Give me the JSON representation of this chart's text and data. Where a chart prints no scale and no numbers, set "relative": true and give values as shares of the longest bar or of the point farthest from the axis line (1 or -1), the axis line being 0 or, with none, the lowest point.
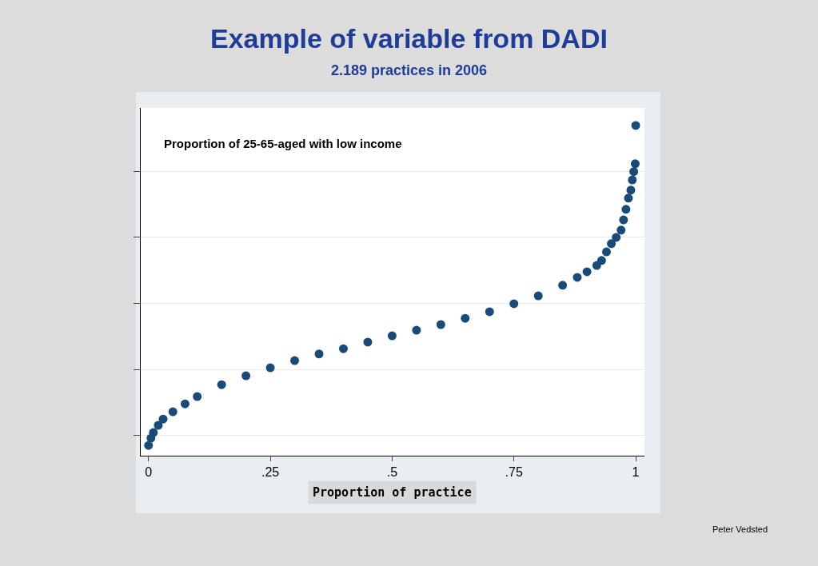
{
  "chart_data": {
    "type": "scatter",
    "title": "Example of variable from DADI",
    "subtitle": "2.189 practices in 2006",
    "xlabel": "Proportion of practice",
    "relative": true,
    "color": "#1a4a78",
    "marker": "circle",
    "grid": "y",
    "xlim": [
      -0.016,
      1.018
    ],
    "xticks": [
      0,
      {
        "value": 0.25,
        "label": ".25"
      },
      {
        "value": 0.5,
        "label": ".5"
      },
      {
        "value": 0.75,
        "label": ".75"
      },
      1
    ],
    "tick_labels": "x",
    "x": [
      0,
      0.005,
      0.01,
      0.02,
      0.03,
      0.05,
      0.075,
      0.1,
      0.15,
      0.2,
      0.25,
      0.3,
      0.35,
      0.4,
      0.45,
      0.5,
      0.55,
      0.6,
      0.65,
      0.7,
      0.75,
      0.8,
      0.85,
      0.88,
      0.9,
      0.92,
      0.93,
      0.94,
      0.95,
      0.96,
      0.97,
      0.975,
      0.98,
      0.985,
      0.99,
      0.993,
      0.996,
      0.999,
      1.0
    ],
    "values": [
      0.031,
      0.053,
      0.07,
      0.092,
      0.111,
      0.133,
      0.157,
      0.179,
      0.215,
      0.242,
      0.266,
      0.288,
      0.308,
      0.324,
      0.344,
      0.363,
      0.38,
      0.397,
      0.416,
      0.436,
      0.46,
      0.484,
      0.516,
      0.54,
      0.557,
      0.576,
      0.591,
      0.617,
      0.642,
      0.661,
      0.683,
      0.714,
      0.746,
      0.78,
      0.804,
      0.835,
      0.86,
      0.884,
      1.0
    ],
    "annotations": [
      "Proportion of 25-65-aged with low income",
      "Peter Vedsted"
    ]
  }
}
